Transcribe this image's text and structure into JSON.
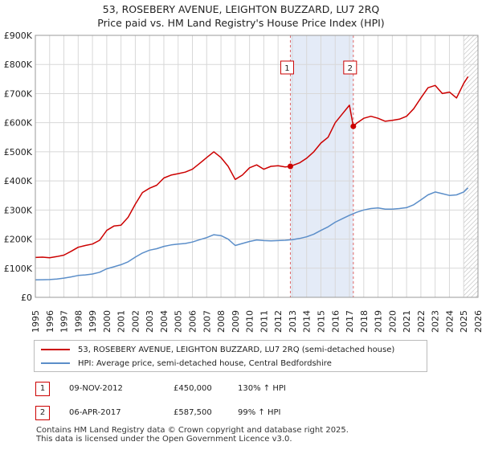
{
  "header": {
    "title_line1": "53, ROSEBERY AVENUE, LEIGHTON BUZZARD, LU7 2RQ",
    "title_line2": "Price paid vs. HM Land Registry's House Price Index (HPI)"
  },
  "chart_data": {
    "type": "line",
    "title": "53, ROSEBERY AVENUE, LEIGHTON BUZZARD, LU7 2RQ — Price paid vs. HM Land Registry's House Price Index (HPI)",
    "xlim": [
      1995,
      2026
    ],
    "ylim": [
      0,
      900000
    ],
    "y_ticks": [
      0,
      100000,
      200000,
      300000,
      400000,
      500000,
      600000,
      700000,
      800000,
      900000
    ],
    "y_tick_labels": [
      "£0",
      "£100K",
      "£200K",
      "£300K",
      "£400K",
      "£500K",
      "£600K",
      "£700K",
      "£800K",
      "£900K"
    ],
    "x_ticks": [
      1995,
      1996,
      1997,
      1998,
      1999,
      2000,
      2001,
      2002,
      2003,
      2004,
      2005,
      2006,
      2007,
      2008,
      2009,
      2010,
      2011,
      2012,
      2013,
      2014,
      2015,
      2016,
      2017,
      2018,
      2019,
      2020,
      2021,
      2022,
      2023,
      2024,
      2025,
      2026
    ],
    "x_tick_labels": [
      "1995",
      "1996",
      "1997",
      "1998",
      "1999",
      "2000",
      "2001",
      "2002",
      "2003",
      "2004",
      "2005",
      "2006",
      "2007",
      "2008",
      "2009",
      "2010",
      "2011",
      "2012",
      "2013",
      "2014",
      "2015",
      "2016",
      "2017",
      "2018",
      "2019",
      "2020",
      "2021",
      "2022",
      "2023",
      "2024",
      "2025",
      "2026"
    ],
    "grid": true,
    "shaded_period": [
      2012.86,
      2017.27
    ],
    "hatched_from": 2025.0,
    "series": [
      {
        "name": "53, ROSEBERY AVENUE, LEIGHTON BUZZARD, LU7 2RQ (semi-detached house)",
        "color": "#cc0000",
        "x": [
          1995.0,
          1995.5,
          1996.0,
          1996.5,
          1997.0,
          1997.5,
          1998.0,
          1998.5,
          1999.0,
          1999.5,
          2000.0,
          2000.5,
          2001.0,
          2001.5,
          2002.0,
          2002.5,
          2003.0,
          2003.5,
          2004.0,
          2004.5,
          2005.0,
          2005.5,
          2006.0,
          2006.5,
          2007.0,
          2007.5,
          2008.0,
          2008.5,
          2009.0,
          2009.5,
          2010.0,
          2010.5,
          2011.0,
          2011.5,
          2012.0,
          2012.5,
          2012.86,
          2013.5,
          2014.0,
          2014.5,
          2015.0,
          2015.5,
          2016.0,
          2016.5,
          2017.0,
          2017.27,
          2017.5,
          2018.0,
          2018.5,
          2019.0,
          2019.5,
          2020.0,
          2020.5,
          2021.0,
          2021.5,
          2022.0,
          2022.5,
          2023.0,
          2023.5,
          2024.0,
          2024.5,
          2025.0,
          2025.3
        ],
        "values": [
          137000,
          138000,
          136000,
          140000,
          145000,
          158000,
          172000,
          178000,
          183000,
          196000,
          230000,
          245000,
          248000,
          275000,
          320000,
          360000,
          375000,
          385000,
          410000,
          420000,
          425000,
          430000,
          440000,
          460000,
          480000,
          500000,
          480000,
          450000,
          405000,
          420000,
          445000,
          455000,
          440000,
          450000,
          452000,
          448000,
          450000,
          462000,
          478000,
          500000,
          530000,
          550000,
          600000,
          630000,
          660000,
          587500,
          598000,
          615000,
          622000,
          615000,
          605000,
          608000,
          612000,
          622000,
          648000,
          685000,
          720000,
          728000,
          700000,
          705000,
          685000,
          735000,
          758000
        ]
      },
      {
        "name": "HPI: Average price, semi-detached house, Central Bedfordshire",
        "color": "#5b8ec9",
        "x": [
          1995.0,
          1995.5,
          1996.0,
          1996.5,
          1997.0,
          1997.5,
          1998.0,
          1998.5,
          1999.0,
          1999.5,
          2000.0,
          2000.5,
          2001.0,
          2001.5,
          2002.0,
          2002.5,
          2003.0,
          2003.5,
          2004.0,
          2004.5,
          2005.0,
          2005.5,
          2006.0,
          2006.5,
          2007.0,
          2007.5,
          2008.0,
          2008.5,
          2009.0,
          2009.5,
          2010.0,
          2010.5,
          2011.0,
          2011.5,
          2012.0,
          2012.5,
          2013.0,
          2013.5,
          2014.0,
          2014.5,
          2015.0,
          2015.5,
          2016.0,
          2016.5,
          2017.0,
          2017.5,
          2018.0,
          2018.5,
          2019.0,
          2019.5,
          2020.0,
          2020.5,
          2021.0,
          2021.5,
          2022.0,
          2022.5,
          2023.0,
          2023.5,
          2024.0,
          2024.5,
          2025.0,
          2025.3
        ],
        "values": [
          60000,
          60500,
          61000,
          63000,
          66000,
          70000,
          75000,
          77000,
          80000,
          86000,
          98000,
          105000,
          112000,
          122000,
          138000,
          152000,
          162000,
          167000,
          175000,
          180000,
          183000,
          185000,
          190000,
          198000,
          205000,
          215000,
          212000,
          200000,
          178000,
          185000,
          192000,
          197000,
          195000,
          194000,
          195000,
          196000,
          198000,
          202000,
          208000,
          217000,
          230000,
          242000,
          258000,
          270000,
          282000,
          292000,
          300000,
          305000,
          307000,
          303000,
          303000,
          305000,
          308000,
          318000,
          335000,
          352000,
          362000,
          356000,
          350000,
          352000,
          362000,
          376000
        ]
      }
    ],
    "annotations": [
      {
        "label": "1",
        "x": 2012.86
      },
      {
        "label": "2",
        "x": 2017.27
      }
    ],
    "sale_points": [
      {
        "x": 2012.86,
        "y": 450000
      },
      {
        "x": 2017.27,
        "y": 587500
      }
    ]
  },
  "legend": {
    "items": [
      {
        "label": "53, ROSEBERY AVENUE, LEIGHTON BUZZARD, LU7 2RQ (semi-detached house)",
        "color": "#cc0000"
      },
      {
        "label": "HPI: Average price, semi-detached house, Central Bedfordshire",
        "color": "#5b8ec9"
      }
    ]
  },
  "transactions": [
    {
      "id": "1",
      "date": "09-NOV-2012",
      "price": "£450,000",
      "hpi": "130% ↑ HPI"
    },
    {
      "id": "2",
      "date": "06-APR-2017",
      "price": "£587,500",
      "hpi": "99% ↑ HPI"
    }
  ],
  "footer": {
    "line1": "Contains HM Land Registry data © Crown copyright and database right 2025.",
    "line2": "This data is licensed under the Open Government Licence v3.0."
  }
}
